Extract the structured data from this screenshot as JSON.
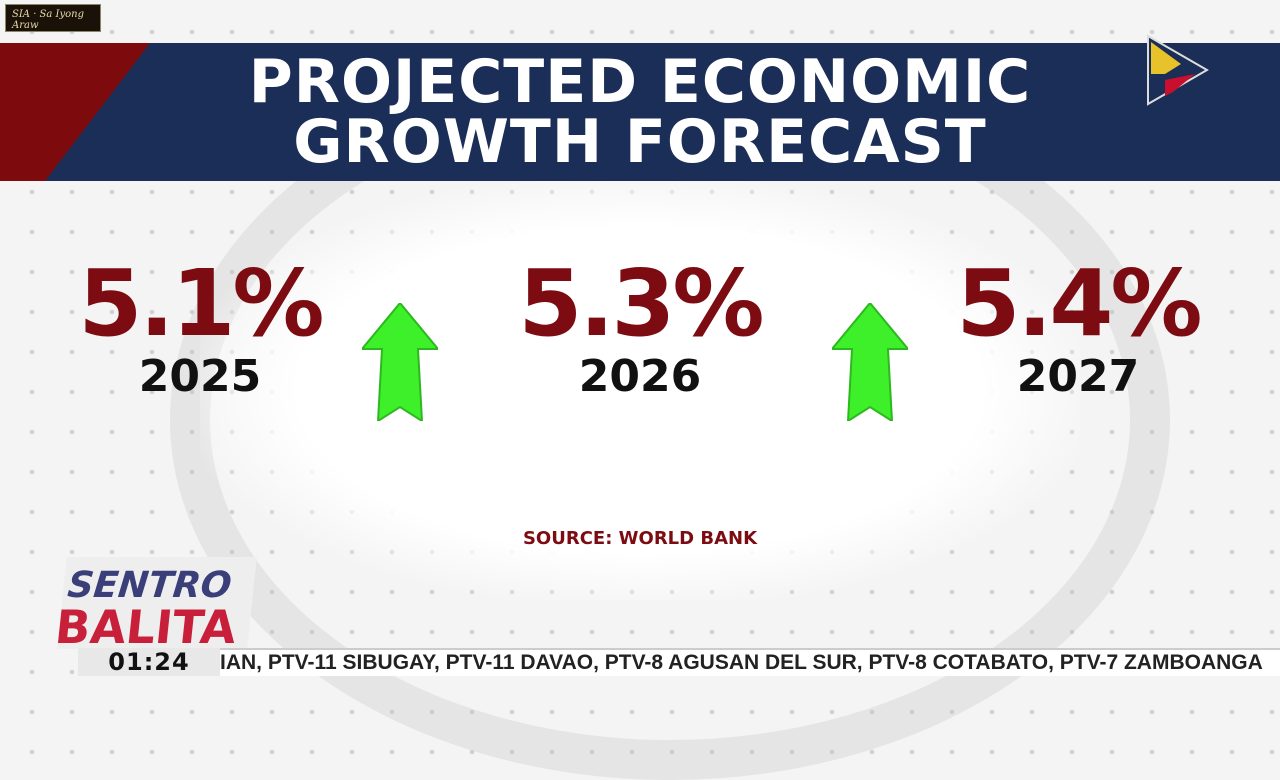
{
  "channel_watermark": "Sa Iyong Araw SIA",
  "header": {
    "title_line1": "PROJECTED ECONOMIC",
    "title_line2": "GROWTH FORECAST"
  },
  "forecasts": [
    {
      "value": "5.1%",
      "year": "2025"
    },
    {
      "value": "5.3%",
      "year": "2026"
    },
    {
      "value": "5.4%",
      "year": "2027"
    }
  ],
  "trend_icon": "up-arrow-icon",
  "source": "SOURCE: WORLD BANK",
  "show_logo": {
    "line1": "SENTRO",
    "line2": "BALITA"
  },
  "clock": "01:24",
  "ticker": "IAN, PTV-11 SIBUGAY, PTV-11 DAVAO, PTV-8 AGUSAN DEL SUR, PTV-8 COTABATO, PTV-7 ZAMBOANGA",
  "colors": {
    "banner": "#1b2e57",
    "accent_red": "#7c0c12",
    "arrow_green": "#3df02a"
  }
}
